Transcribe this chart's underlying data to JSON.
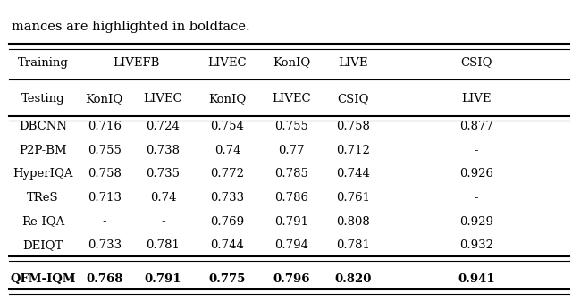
{
  "caption_text": "mances are highlighted in boldface.",
  "header_row1_labels": [
    "Training",
    "LIVEFB",
    "LIVEC",
    "KonIQ",
    "LIVE",
    "CSIQ"
  ],
  "header_row2_labels": [
    "Testing",
    "KonIQ",
    "LIVEC",
    "KonIQ",
    "LIVEC",
    "CSIQ",
    "LIVE"
  ],
  "rows": [
    [
      "DBCNN",
      "0.716",
      "0.724",
      "0.754",
      "0.755",
      "0.758",
      "0.877"
    ],
    [
      "P2P-BM",
      "0.755",
      "0.738",
      "0.74",
      "0.77",
      "0.712",
      "-"
    ],
    [
      "HyperIQA",
      "0.758",
      "0.735",
      "0.772",
      "0.785",
      "0.744",
      "0.926"
    ],
    [
      "TReS",
      "0.713",
      "0.74",
      "0.733",
      "0.786",
      "0.761",
      "-"
    ],
    [
      "Re-IQA",
      "-",
      "-",
      "0.769",
      "0.791",
      "0.808",
      "0.929"
    ],
    [
      "DEIQT",
      "0.733",
      "0.781",
      "0.744",
      "0.794",
      "0.781",
      "0.932"
    ]
  ],
  "last_row": [
    "QFM-IQM",
    "0.768",
    "0.791",
    "0.775",
    "0.796",
    "0.820",
    "0.941"
  ],
  "bg_color": "#ffffff",
  "text_color": "#000000",
  "font_size": 9.5,
  "caption_font_size": 10.5
}
